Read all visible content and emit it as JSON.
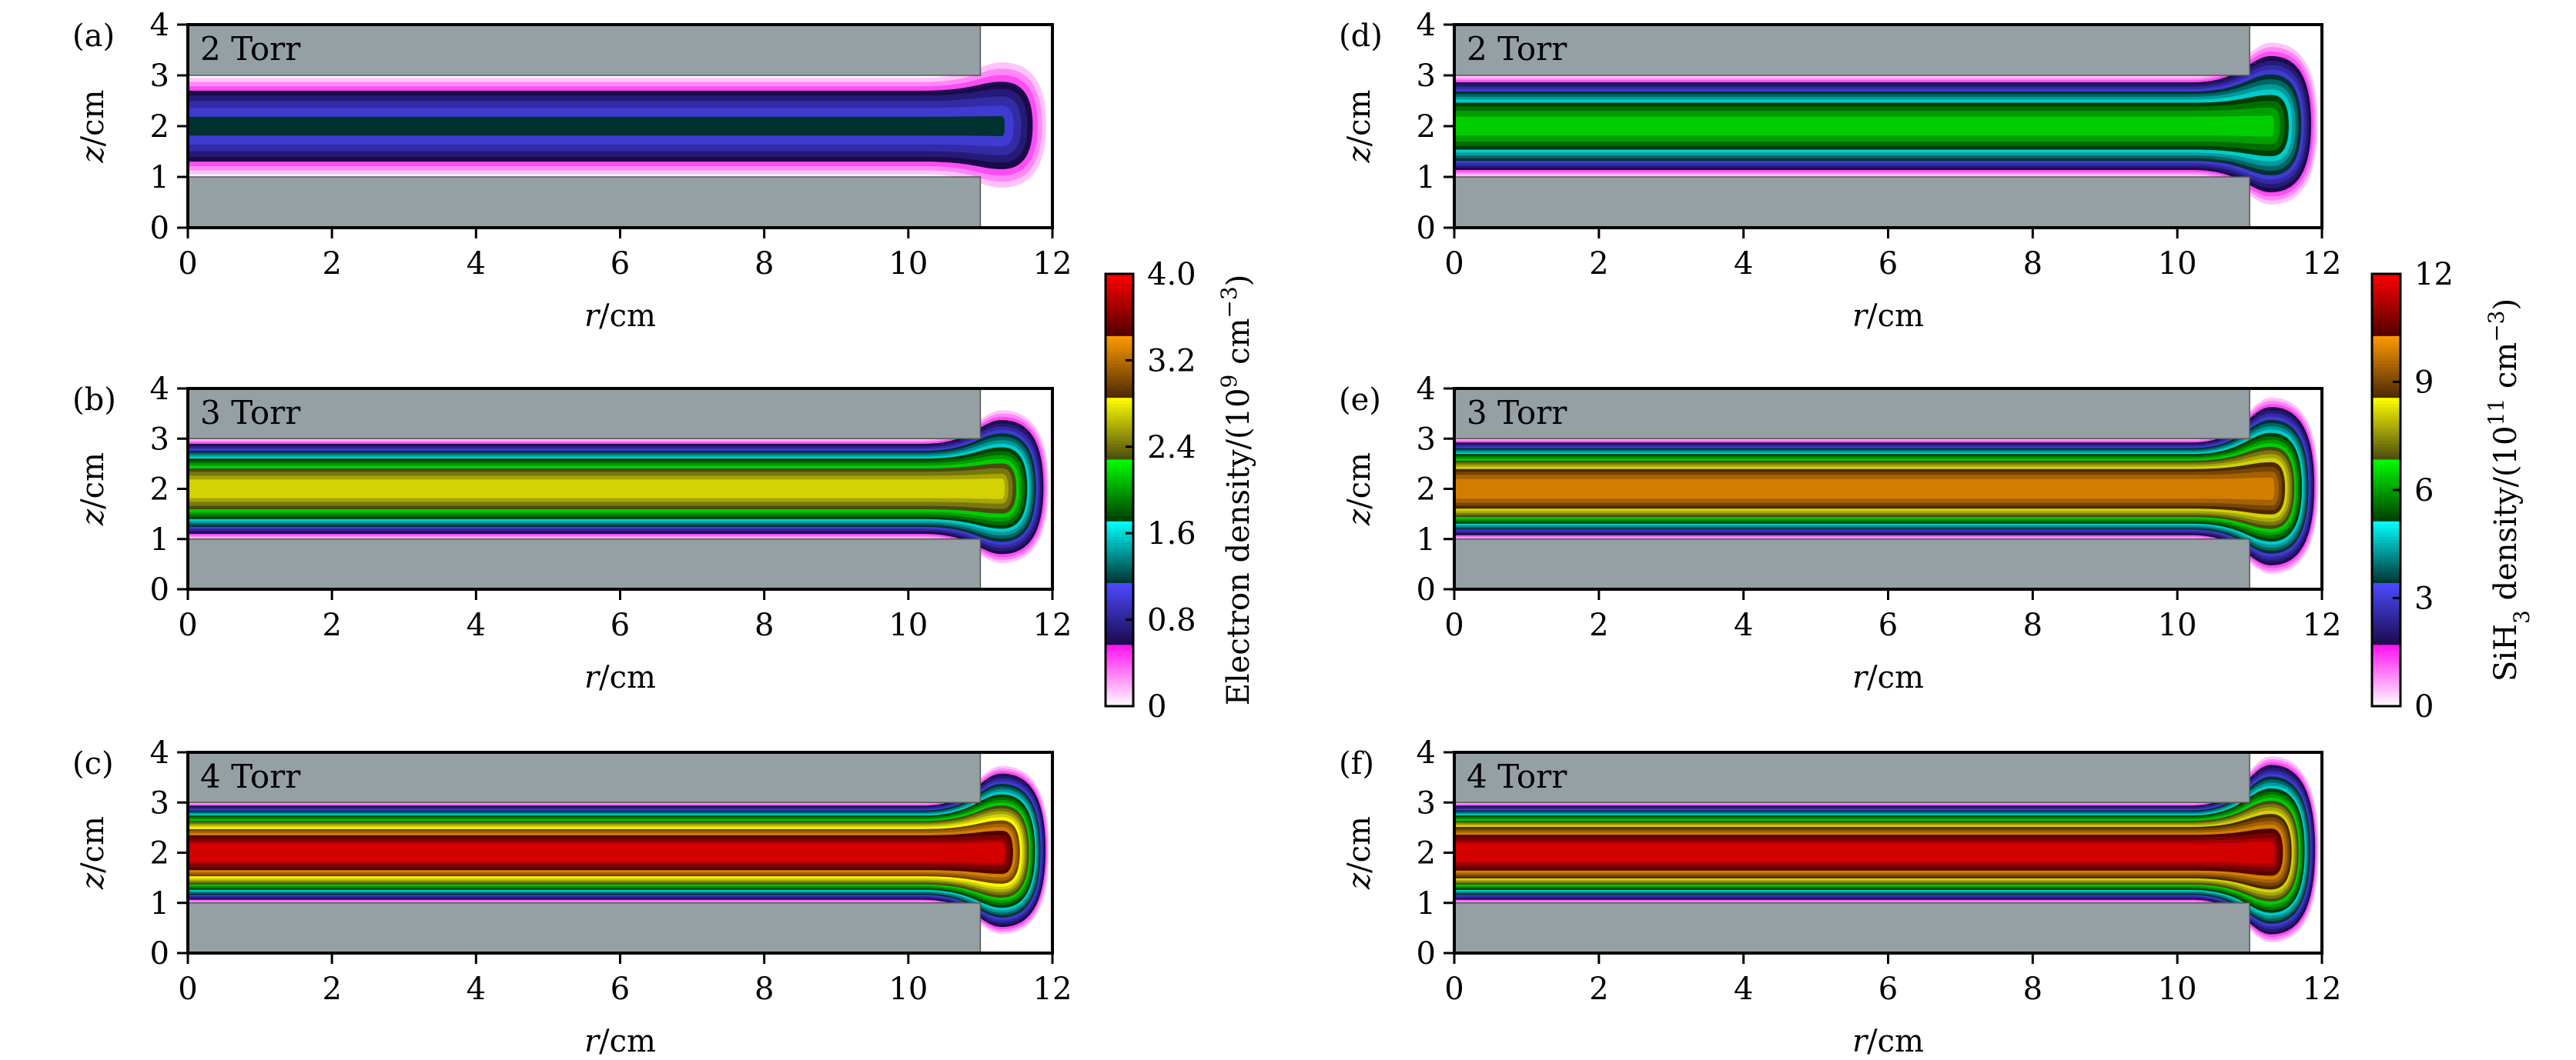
{
  "chart_data": [
    {
      "type": "heatmap",
      "panel_label": "(a)",
      "pressure_label": "2 Torr",
      "colorbar": 0,
      "peak": 1.15,
      "spread": 0.35,
      "xlim": [
        0,
        12
      ],
      "ylim": [
        0,
        4
      ],
      "xticks": [
        "0",
        "2",
        "4",
        "6",
        "8",
        "10",
        "12"
      ],
      "yticks": [
        "0",
        "1",
        "2",
        "3",
        "4"
      ],
      "xlabel": [
        {
          "t": "r",
          "it": true
        },
        {
          "t": "/cm"
        }
      ],
      "ylabel": [
        {
          "t": "z",
          "it": true
        },
        {
          "t": "/cm"
        }
      ]
    },
    {
      "type": "heatmap",
      "panel_label": "(b)",
      "pressure_label": "3 Torr",
      "colorbar": 0,
      "peak": 2.75,
      "spread": 0.6,
      "xlim": [
        0,
        12
      ],
      "ylim": [
        0,
        4
      ],
      "xticks": [
        "0",
        "2",
        "4",
        "6",
        "8",
        "10",
        "12"
      ],
      "yticks": [
        "0",
        "1",
        "2",
        "3",
        "4"
      ],
      "xlabel": [
        {
          "t": "r",
          "it": true
        },
        {
          "t": "/cm"
        }
      ],
      "ylabel": [
        {
          "t": "z",
          "it": true
        },
        {
          "t": "/cm"
        }
      ]
    },
    {
      "type": "heatmap",
      "panel_label": "(c)",
      "pressure_label": "4 Torr",
      "colorbar": 0,
      "peak": 3.9,
      "spread": 0.75,
      "xlim": [
        0,
        12
      ],
      "ylim": [
        0,
        4
      ],
      "xticks": [
        "0",
        "2",
        "4",
        "6",
        "8",
        "10",
        "12"
      ],
      "yticks": [
        "0",
        "1",
        "2",
        "3",
        "4"
      ],
      "xlabel": [
        {
          "t": "r",
          "it": true
        },
        {
          "t": "/cm"
        }
      ],
      "ylabel": [
        {
          "t": "z",
          "it": true
        },
        {
          "t": "/cm"
        }
      ]
    },
    {
      "type": "heatmap",
      "panel_label": "(d)",
      "pressure_label": "2 Torr",
      "colorbar": 1,
      "peak": 6.6,
      "spread": 0.7,
      "xlim": [
        0,
        12
      ],
      "ylim": [
        0,
        4
      ],
      "xticks": [
        "0",
        "2",
        "4",
        "6",
        "8",
        "10",
        "12"
      ],
      "yticks": [
        "0",
        "1",
        "2",
        "3",
        "4"
      ],
      "xlabel": [
        {
          "t": "r",
          "it": true
        },
        {
          "t": "/cm"
        }
      ],
      "ylabel": [
        {
          "t": "z",
          "it": true
        },
        {
          "t": "/cm"
        }
      ]
    },
    {
      "type": "heatmap",
      "panel_label": "(e)",
      "pressure_label": "3 Torr",
      "colorbar": 1,
      "peak": 10.2,
      "spread": 0.85,
      "xlim": [
        0,
        12
      ],
      "ylim": [
        0,
        4
      ],
      "xticks": [
        "0",
        "2",
        "4",
        "6",
        "8",
        "10",
        "12"
      ],
      "yticks": [
        "0",
        "1",
        "2",
        "3",
        "4"
      ],
      "xlabel": [
        {
          "t": "r",
          "it": true
        },
        {
          "t": "/cm"
        }
      ],
      "ylabel": [
        {
          "t": "z",
          "it": true
        },
        {
          "t": "/cm"
        }
      ]
    },
    {
      "type": "heatmap",
      "panel_label": "(f)",
      "pressure_label": "4 Torr",
      "colorbar": 1,
      "peak": 11.8,
      "spread": 0.95,
      "xlim": [
        0,
        12
      ],
      "ylim": [
        0,
        4
      ],
      "xticks": [
        "0",
        "2",
        "4",
        "6",
        "8",
        "10",
        "12"
      ],
      "yticks": [
        "0",
        "1",
        "2",
        "3",
        "4"
      ],
      "xlabel": [
        {
          "t": "r",
          "it": true
        },
        {
          "t": "/cm"
        }
      ],
      "ylabel": [
        {
          "t": "z",
          "it": true
        },
        {
          "t": "/cm"
        }
      ]
    }
  ],
  "colorbars": [
    {
      "range": [
        0,
        4
      ],
      "ticks": [
        0,
        0.8,
        1.6,
        2.4,
        3.2,
        4.0
      ],
      "tick_labels": [
        "0",
        "0.8",
        "1.6",
        "2.4",
        "3.2",
        "4.0"
      ],
      "label": [
        {
          "t": "Electron density/(10"
        },
        {
          "t": "9",
          "sup": true
        },
        {
          "t": " cm"
        },
        {
          "t": "−3",
          "sup": true
        },
        {
          "t": ")"
        }
      ]
    },
    {
      "range": [
        0,
        12
      ],
      "ticks": [
        0,
        3,
        6,
        9,
        12
      ],
      "tick_labels": [
        "0",
        "3",
        "6",
        "9",
        "12"
      ],
      "label": [
        {
          "t": "SiH"
        },
        {
          "t": "3",
          "sub": true
        },
        {
          "t": " density/(10"
        },
        {
          "t": "11",
          "sup": true
        },
        {
          "t": " cm"
        },
        {
          "t": "−3",
          "sup": true
        },
        {
          "t": ")"
        }
      ]
    }
  ],
  "colors": {
    "electrode": "#95a0a4",
    "colormap_bands": [
      [
        "#ffffff",
        "#ff10f0"
      ],
      [
        "#1a0a4a",
        "#4b4bff"
      ],
      [
        "#003232",
        "#00ffff"
      ],
      [
        "#003c00",
        "#00ff00"
      ],
      [
        "#4a4a10",
        "#ffff00"
      ],
      [
        "#4a2800",
        "#ff9a00"
      ],
      [
        "#500000",
        "#ff0000"
      ]
    ]
  }
}
